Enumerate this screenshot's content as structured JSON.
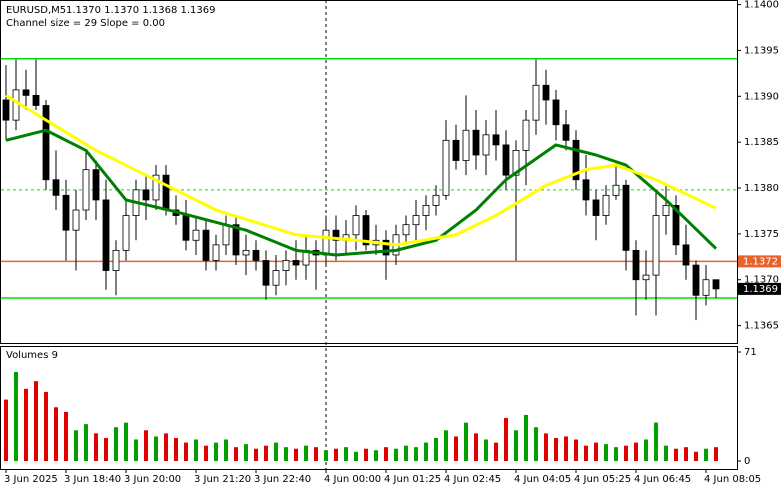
{
  "chart_data": {
    "type": "candlestick",
    "title": "EURUSD,M5",
    "quote": "1.1370 1.1370 1.1368 1.1369",
    "indicator_label": "Channel size = 29 Slope = 0.00",
    "candles": [
      [
        1.13896,
        1.13934,
        1.13852,
        1.13874
      ],
      [
        1.13874,
        1.1394,
        1.13863,
        1.13907
      ],
      [
        1.13907,
        1.13929,
        1.13885,
        1.13901
      ],
      [
        1.13901,
        1.1394,
        1.13885,
        1.1389
      ],
      [
        1.1389,
        1.13896,
        1.13798,
        1.13809
      ],
      [
        1.13809,
        1.13841,
        1.13776,
        1.13792
      ],
      [
        1.13792,
        1.13809,
        1.13721,
        1.13754
      ],
      [
        1.13754,
        1.13798,
        1.1371,
        1.13776
      ],
      [
        1.13776,
        1.13841,
        1.13765,
        1.1382
      ],
      [
        1.1382,
        1.1383,
        1.13765,
        1.13787
      ],
      [
        1.13787,
        1.13809,
        1.13689,
        1.1371
      ],
      [
        1.1371,
        1.13743,
        1.13683,
        1.13732
      ],
      [
        1.13732,
        1.13787,
        1.13721,
        1.1377
      ],
      [
        1.1377,
        1.13809,
        1.13743,
        1.13798
      ],
      [
        1.13798,
        1.13814,
        1.13765,
        1.13787
      ],
      [
        1.13787,
        1.13825,
        1.13776,
        1.13814
      ],
      [
        1.13814,
        1.13825,
        1.1377,
        1.13776
      ],
      [
        1.13776,
        1.13792,
        1.1376,
        1.1377
      ],
      [
        1.1377,
        1.13787,
        1.13732,
        1.13743
      ],
      [
        1.13743,
        1.1377,
        1.13727,
        1.13754
      ],
      [
        1.13754,
        1.13765,
        1.1371,
        1.13721
      ],
      [
        1.13721,
        1.13749,
        1.1371,
        1.13738
      ],
      [
        1.13738,
        1.1377,
        1.13727,
        1.1376
      ],
      [
        1.1376,
        1.1377,
        1.13716,
        1.13727
      ],
      [
        1.13727,
        1.13749,
        1.13705,
        1.13732
      ],
      [
        1.13732,
        1.13743,
        1.1371,
        1.13721
      ],
      [
        1.13721,
        1.13732,
        1.13678,
        1.13694
      ],
      [
        1.13694,
        1.13727,
        1.13683,
        1.1371
      ],
      [
        1.1371,
        1.13732,
        1.13694,
        1.13721
      ],
      [
        1.13721,
        1.13743,
        1.137,
        1.13716
      ],
      [
        1.13716,
        1.13749,
        1.137,
        1.13732
      ],
      [
        1.13732,
        1.13743,
        1.13689,
        1.13727
      ],
      [
        1.13727,
        1.1377,
        1.13716,
        1.13754
      ],
      [
        1.13754,
        1.1377,
        1.13721,
        1.13743
      ],
      [
        1.13743,
        1.13765,
        1.13727,
        1.13749
      ],
      [
        1.13749,
        1.13781,
        1.13732,
        1.1377
      ],
      [
        1.1377,
        1.13776,
        1.13732,
        1.13738
      ],
      [
        1.13738,
        1.1376,
        1.13727,
        1.13743
      ],
      [
        1.13743,
        1.13754,
        1.137,
        1.13727
      ],
      [
        1.13727,
        1.1376,
        1.13716,
        1.13749
      ],
      [
        1.13749,
        1.1377,
        1.13738,
        1.1376
      ],
      [
        1.1376,
        1.13787,
        1.13743,
        1.1377
      ],
      [
        1.1377,
        1.13792,
        1.13754,
        1.13781
      ],
      [
        1.13781,
        1.13803,
        1.1377,
        1.13792
      ],
      [
        1.13792,
        1.13874,
        1.13787,
        1.13852
      ],
      [
        1.13852,
        1.13869,
        1.1382,
        1.1383
      ],
      [
        1.1383,
        1.13901,
        1.13814,
        1.13863
      ],
      [
        1.13863,
        1.13885,
        1.1382,
        1.13836
      ],
      [
        1.13836,
        1.13874,
        1.13814,
        1.13858
      ],
      [
        1.13858,
        1.13885,
        1.1383,
        1.13847
      ],
      [
        1.13847,
        1.13863,
        1.13798,
        1.13814
      ],
      [
        1.13814,
        1.13852,
        1.13721,
        1.13841
      ],
      [
        1.13841,
        1.13885,
        1.13803,
        1.13874
      ],
      [
        1.13874,
        1.1394,
        1.13858,
        1.13912
      ],
      [
        1.13912,
        1.13929,
        1.13869,
        1.13896
      ],
      [
        1.13896,
        1.13907,
        1.13852,
        1.13869
      ],
      [
        1.13869,
        1.13885,
        1.13841,
        1.13852
      ],
      [
        1.13852,
        1.13863,
        1.13798,
        1.13809
      ],
      [
        1.13809,
        1.13836,
        1.1377,
        1.13787
      ],
      [
        1.13787,
        1.13798,
        1.13743,
        1.1377
      ],
      [
        1.1377,
        1.13803,
        1.1376,
        1.13792
      ],
      [
        1.13792,
        1.13825,
        1.13787,
        1.13803
      ],
      [
        1.13803,
        1.13809,
        1.1371,
        1.13732
      ],
      [
        1.13732,
        1.13743,
        1.13661,
        1.137
      ],
      [
        1.137,
        1.13732,
        1.13678,
        1.13705
      ],
      [
        1.13705,
        1.13798,
        1.13661,
        1.1377
      ],
      [
        1.1377,
        1.13803,
        1.13749,
        1.13781
      ],
      [
        1.13781,
        1.13792,
        1.13727,
        1.13738
      ],
      [
        1.13738,
        1.1376,
        1.137,
        1.13716
      ],
      [
        1.13716,
        1.13721,
        1.13656,
        1.13683
      ],
      [
        1.13683,
        1.13716,
        1.13672,
        1.137
      ],
      [
        1.137,
        1.137,
        1.1368,
        1.1369
      ]
    ],
    "lines": [
      {
        "color": "#008000",
        "x": [
          0,
          4,
          8,
          12,
          17,
          24,
          29,
          33,
          39,
          43,
          47,
          50,
          55,
          59,
          62,
          66,
          71
        ],
        "values": [
          1.13852,
          1.13863,
          1.13841,
          1.13787,
          1.13774,
          1.13754,
          1.13732,
          1.13727,
          1.13732,
          1.13743,
          1.13776,
          1.13809,
          1.13847,
          1.13836,
          1.13825,
          1.13787,
          1.13734
        ]
      },
      {
        "color": "#ffff00",
        "x": [
          0,
          4,
          9,
          14,
          21,
          29,
          35,
          39,
          45,
          49,
          54,
          58,
          61,
          65,
          71
        ],
        "values": [
          1.13901,
          1.13874,
          1.13841,
          1.13814,
          1.13776,
          1.13749,
          1.13743,
          1.13738,
          1.13749,
          1.1377,
          1.13803,
          1.1382,
          1.13825,
          1.13809,
          1.13778
        ]
      }
    ],
    "levels": [
      {
        "value": 1.13941,
        "color": "#00e000",
        "dashed": false
      },
      {
        "value": 1.13798,
        "color": "#00e000",
        "dashed": true
      },
      {
        "value": 1.1368,
        "color": "#00e000",
        "dashed": false
      },
      {
        "value": 1.1372,
        "color": "#e8632b",
        "dashed": false
      }
    ],
    "price_markers": [
      {
        "value": 1.1372,
        "color": "#e8632b"
      },
      {
        "value": 1.1369,
        "color": "#000000"
      }
    ],
    "ylim": [
      1.13631,
      1.14005
    ],
    "yticks": [
      {
        "value": 1.14,
        "label": "1.1400"
      },
      1.1395,
      {
        "value": 1.139,
        "label": "1.1390"
      },
      1.1385,
      {
        "value": 1.138,
        "label": "1.1380"
      },
      1.1375,
      {
        "value": 1.137,
        "label": "1.1370"
      },
      1.1365
    ],
    "xticks": [
      {
        "value": 0,
        "label": "3 Jun 2025"
      },
      {
        "value": 6,
        "label": "3 Jun 18:40"
      },
      {
        "value": 12,
        "label": "3 Jun 20:00"
      },
      {
        "value": 19,
        "label": "3 Jun 21:20"
      },
      {
        "value": 25,
        "label": "3 Jun 22:40"
      },
      {
        "value": 32,
        "label": "4 Jun 00:00"
      },
      {
        "value": 38,
        "label": "4 Jun 01:25"
      },
      {
        "value": 44,
        "label": "4 Jun 02:45"
      },
      {
        "value": 51,
        "label": "4 Jun 04:05"
      },
      {
        "value": 57,
        "label": "4 Jun 05:25"
      },
      {
        "value": 63,
        "label": "4 Jun 06:45"
      },
      {
        "value": 70,
        "label": "4 Jun 08:05"
      }
    ],
    "day_separator": 32,
    "volumes": {
      "title": "Volumes 9",
      "values": [
        40,
        58,
        47,
        52,
        45,
        35,
        32,
        20,
        24,
        18,
        15,
        22,
        25,
        14,
        20,
        16,
        18,
        15,
        12,
        14,
        10,
        12,
        14,
        9,
        11,
        8,
        10,
        12,
        9,
        8,
        10,
        9,
        7,
        8,
        9,
        6,
        8,
        7,
        9,
        8,
        10,
        9,
        12,
        15,
        20,
        16,
        25,
        18,
        14,
        12,
        28,
        20,
        30,
        22,
        18,
        15,
        16,
        14,
        10,
        12,
        11,
        9,
        10,
        12,
        14,
        25,
        10,
        8,
        9,
        6,
        8,
        9
      ],
      "ylim": [
        0,
        71
      ],
      "yticks": [
        0,
        71
      ],
      "up_color": "#00a000",
      "down_color": "#e00000"
    }
  }
}
